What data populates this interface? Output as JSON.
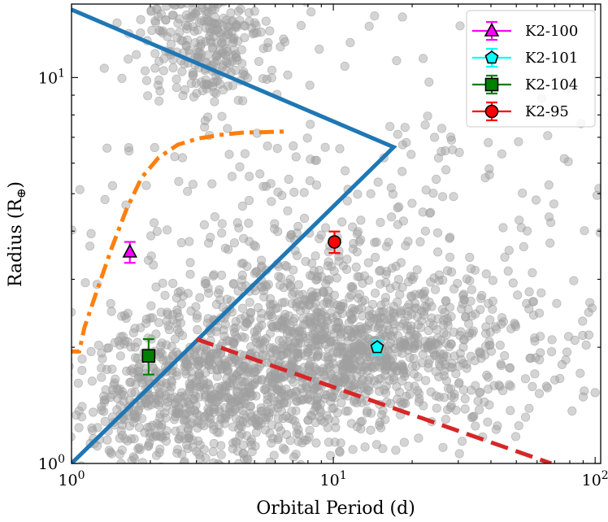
{
  "chart_data": {
    "type": "scatter",
    "title": "",
    "xlabel": "Orbital Period (d)",
    "ylabel_text": "Radius (R",
    "ylabel_symbol": "⊕",
    "ylabel_close": ")",
    "xscale": "log",
    "yscale": "log",
    "xlim": [
      1.0,
      105.0
    ],
    "ylim": [
      1.0,
      15.5
    ],
    "grid": false,
    "legend_position": "top-right",
    "x_ticks": [
      {
        "value": 1,
        "base": "10",
        "exp": "0"
      },
      {
        "value": 10,
        "base": "10",
        "exp": "1"
      },
      {
        "value": 100,
        "base": "10",
        "exp": "2"
      }
    ],
    "y_ticks": [
      {
        "value": 1,
        "base": "10",
        "exp": "0"
      },
      {
        "value": 10,
        "base": "10",
        "exp": "1"
      }
    ],
    "planets": [
      {
        "name": "K2-100",
        "x": 1.67,
        "y": 3.53,
        "yerr": 0.22,
        "marker": "triangle",
        "color": "#ff00ff"
      },
      {
        "name": "K2-101",
        "x": 14.7,
        "y": 2.0,
        "yerr": 0.09,
        "marker": "pentagon",
        "color": "#00ffff"
      },
      {
        "name": "K2-104",
        "x": 1.97,
        "y": 1.9,
        "yerr": 0.2,
        "marker": "square",
        "color": "#008000"
      },
      {
        "name": "K2-95",
        "x": 10.1,
        "y": 3.75,
        "yerr": 0.24,
        "marker": "circle",
        "color": "#ff0000"
      }
    ],
    "boundary_solid": {
      "color": "#1f77b4",
      "x": [
        1.0,
        17.0,
        1.0
      ],
      "y": [
        15.0,
        6.6,
        1.0
      ]
    },
    "boundary_dashdot": {
      "color": "#ff7f0e",
      "x": [
        0.95,
        1.07,
        1.12,
        1.25,
        1.42,
        1.62,
        1.85,
        2.15,
        2.55,
        3.05,
        3.7,
        4.5,
        5.5,
        6.6
      ],
      "y": [
        1.95,
        1.95,
        2.25,
        2.8,
        3.6,
        4.55,
        5.5,
        6.2,
        6.7,
        6.95,
        7.1,
        7.2,
        7.22,
        7.25
      ]
    },
    "boundary_dashed": {
      "color": "#d62728",
      "x": [
        3.0,
        68.0
      ],
      "y": [
        2.1,
        1.0
      ]
    },
    "background_sample": {
      "color": "#a0a0a0",
      "description_count": 2600
    }
  }
}
